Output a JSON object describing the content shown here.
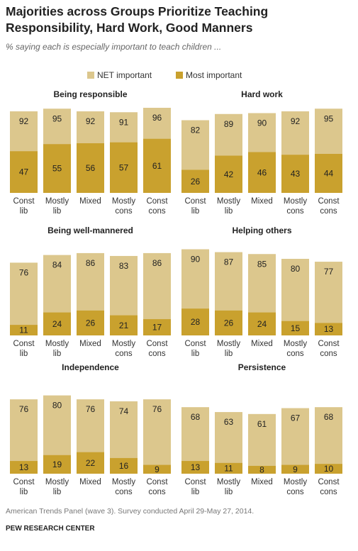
{
  "title": [
    "Majorities across Groups Prioritize Teaching",
    "Responsibility, Hard Work, Good Manners"
  ],
  "subtitle": "% saying each is especially important to teach children ...",
  "source": "American Trends Panel (wave 3). Survey conducted April 29-May 27, 2014.",
  "credit": "PEW RESEARCH CENTER",
  "chart_data": [
    {
      "type": "bar",
      "title": "Being responsible",
      "categories": [
        "Const lib",
        "Mostly lib",
        "Mixed",
        "Mostly cons",
        "Const cons"
      ],
      "ylim": [
        0,
        100
      ],
      "series": [
        {
          "name": "NET important",
          "color": "#dcc78d",
          "values": [
            92,
            95,
            92,
            91,
            96
          ]
        },
        {
          "name": "Most important",
          "color": "#c9a12e",
          "values": [
            47,
            55,
            56,
            57,
            61
          ]
        }
      ]
    },
    {
      "type": "bar",
      "title": "Hard work",
      "categories": [
        "Const lib",
        "Mostly lib",
        "Mixed",
        "Mostly cons",
        "Const cons"
      ],
      "ylim": [
        0,
        100
      ],
      "series": [
        {
          "name": "NET important",
          "color": "#dcc78d",
          "values": [
            82,
            89,
            90,
            92,
            95
          ]
        },
        {
          "name": "Most important",
          "color": "#c9a12e",
          "values": [
            26,
            42,
            46,
            43,
            44
          ]
        }
      ]
    },
    {
      "type": "bar",
      "title": "Being well-mannered",
      "categories": [
        "Const lib",
        "Mostly lib",
        "Mixed",
        "Mostly cons",
        "Const cons"
      ],
      "ylim": [
        0,
        100
      ],
      "series": [
        {
          "name": "NET important",
          "color": "#dcc78d",
          "values": [
            76,
            84,
            86,
            83,
            86
          ]
        },
        {
          "name": "Most important",
          "color": "#c9a12e",
          "values": [
            11,
            24,
            26,
            21,
            17
          ]
        }
      ]
    },
    {
      "type": "bar",
      "title": "Helping others",
      "categories": [
        "Const lib",
        "Mostly lib",
        "Mixed",
        "Mostly cons",
        "Const cons"
      ],
      "ylim": [
        0,
        100
      ],
      "series": [
        {
          "name": "NET important",
          "color": "#dcc78d",
          "values": [
            90,
            87,
            85,
            80,
            77
          ]
        },
        {
          "name": "Most important",
          "color": "#c9a12e",
          "values": [
            28,
            26,
            24,
            15,
            13
          ]
        }
      ]
    },
    {
      "type": "bar",
      "title": "Independence",
      "categories": [
        "Const lib",
        "Mostly lib",
        "Mixed",
        "Mostly cons",
        "Const cons"
      ],
      "ylim": [
        0,
        100
      ],
      "series": [
        {
          "name": "NET important",
          "color": "#dcc78d",
          "values": [
            76,
            80,
            76,
            74,
            76
          ]
        },
        {
          "name": "Most important",
          "color": "#c9a12e",
          "values": [
            13,
            19,
            22,
            16,
            9
          ]
        }
      ]
    },
    {
      "type": "bar",
      "title": "Persistence",
      "categories": [
        "Const lib",
        "Mostly lib",
        "Mixed",
        "Mostly cons",
        "Const cons"
      ],
      "ylim": [
        0,
        100
      ],
      "series": [
        {
          "name": "NET important",
          "color": "#dcc78d",
          "values": [
            68,
            63,
            61,
            67,
            68
          ]
        },
        {
          "name": "Most important",
          "color": "#c9a12e",
          "values": [
            13,
            11,
            8,
            9,
            10
          ]
        }
      ]
    }
  ]
}
